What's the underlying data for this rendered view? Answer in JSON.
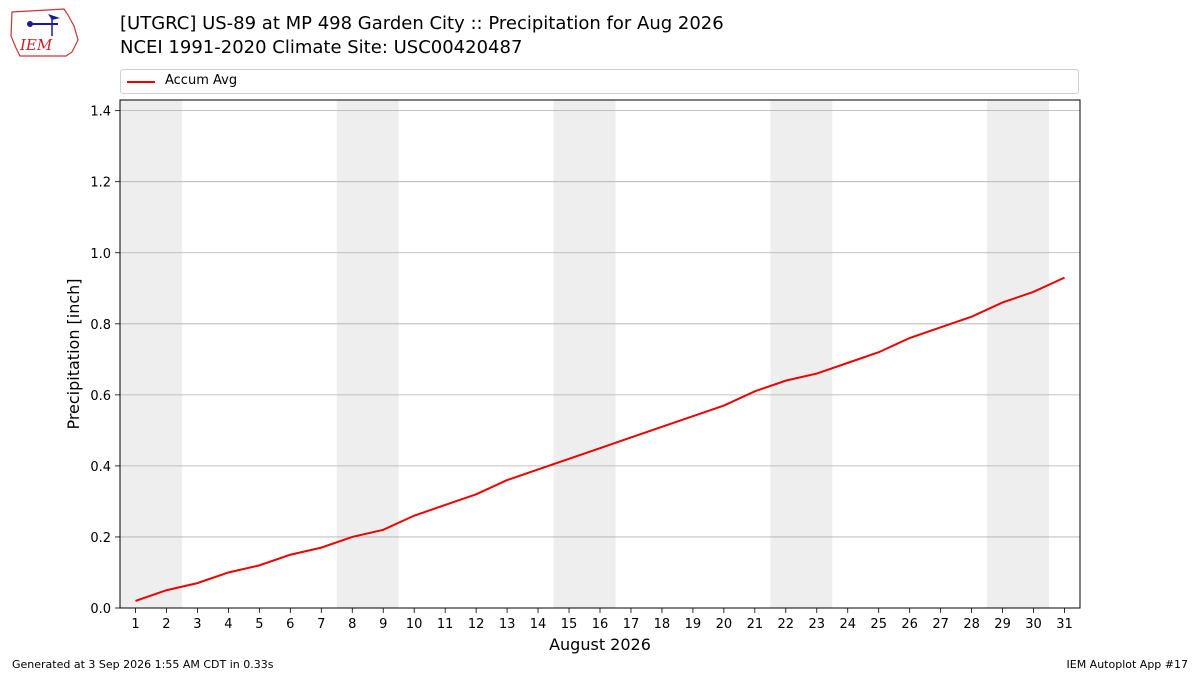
{
  "header": {
    "title": "[UTGRC] US-89 at MP 498 Garden City :: Precipitation for Aug 2026",
    "subtitle": "NCEI 1991-2020 Climate Site: USC00420487",
    "logo_text": "IEM"
  },
  "legend": {
    "label": "Accum Avg",
    "color": "#ee0000"
  },
  "footer": {
    "left": "Generated at 3 Sep 2026 1:55 AM CDT in 0.33s",
    "right": "IEM Autoplot App #17"
  },
  "chart_data": {
    "type": "line",
    "xlabel": "August 2026",
    "ylabel": "Precipitation [inch]",
    "x": [
      1,
      2,
      3,
      4,
      5,
      6,
      7,
      8,
      9,
      10,
      11,
      12,
      13,
      14,
      15,
      16,
      17,
      18,
      19,
      20,
      21,
      22,
      23,
      24,
      25,
      26,
      27,
      28,
      29,
      30,
      31
    ],
    "xlim": [
      0.5,
      31.5
    ],
    "ylim": [
      0,
      1.43
    ],
    "yticks": [
      0.0,
      0.2,
      0.4,
      0.6,
      0.8,
      1.0,
      1.2,
      1.4
    ],
    "ytick_labels": [
      "0.0",
      "0.2",
      "0.4",
      "0.6",
      "0.8",
      "1.0",
      "1.2",
      "1.4"
    ],
    "grid": "horizontal",
    "legend_position": "top",
    "weekend_shading": [
      [
        1,
        2
      ],
      [
        8,
        9
      ],
      [
        15,
        16
      ],
      [
        22,
        23
      ],
      [
        29,
        30
      ]
    ],
    "shade_color": "#eeeeee",
    "series": [
      {
        "name": "Accum Avg",
        "color": "#ee0000",
        "values": [
          0.02,
          0.05,
          0.07,
          0.1,
          0.12,
          0.15,
          0.17,
          0.2,
          0.22,
          0.26,
          0.29,
          0.32,
          0.36,
          0.39,
          0.42,
          0.45,
          0.48,
          0.51,
          0.54,
          0.57,
          0.61,
          0.64,
          0.66,
          0.69,
          0.72,
          0.76,
          0.79,
          0.82,
          0.86,
          0.89,
          0.93
        ]
      }
    ]
  }
}
